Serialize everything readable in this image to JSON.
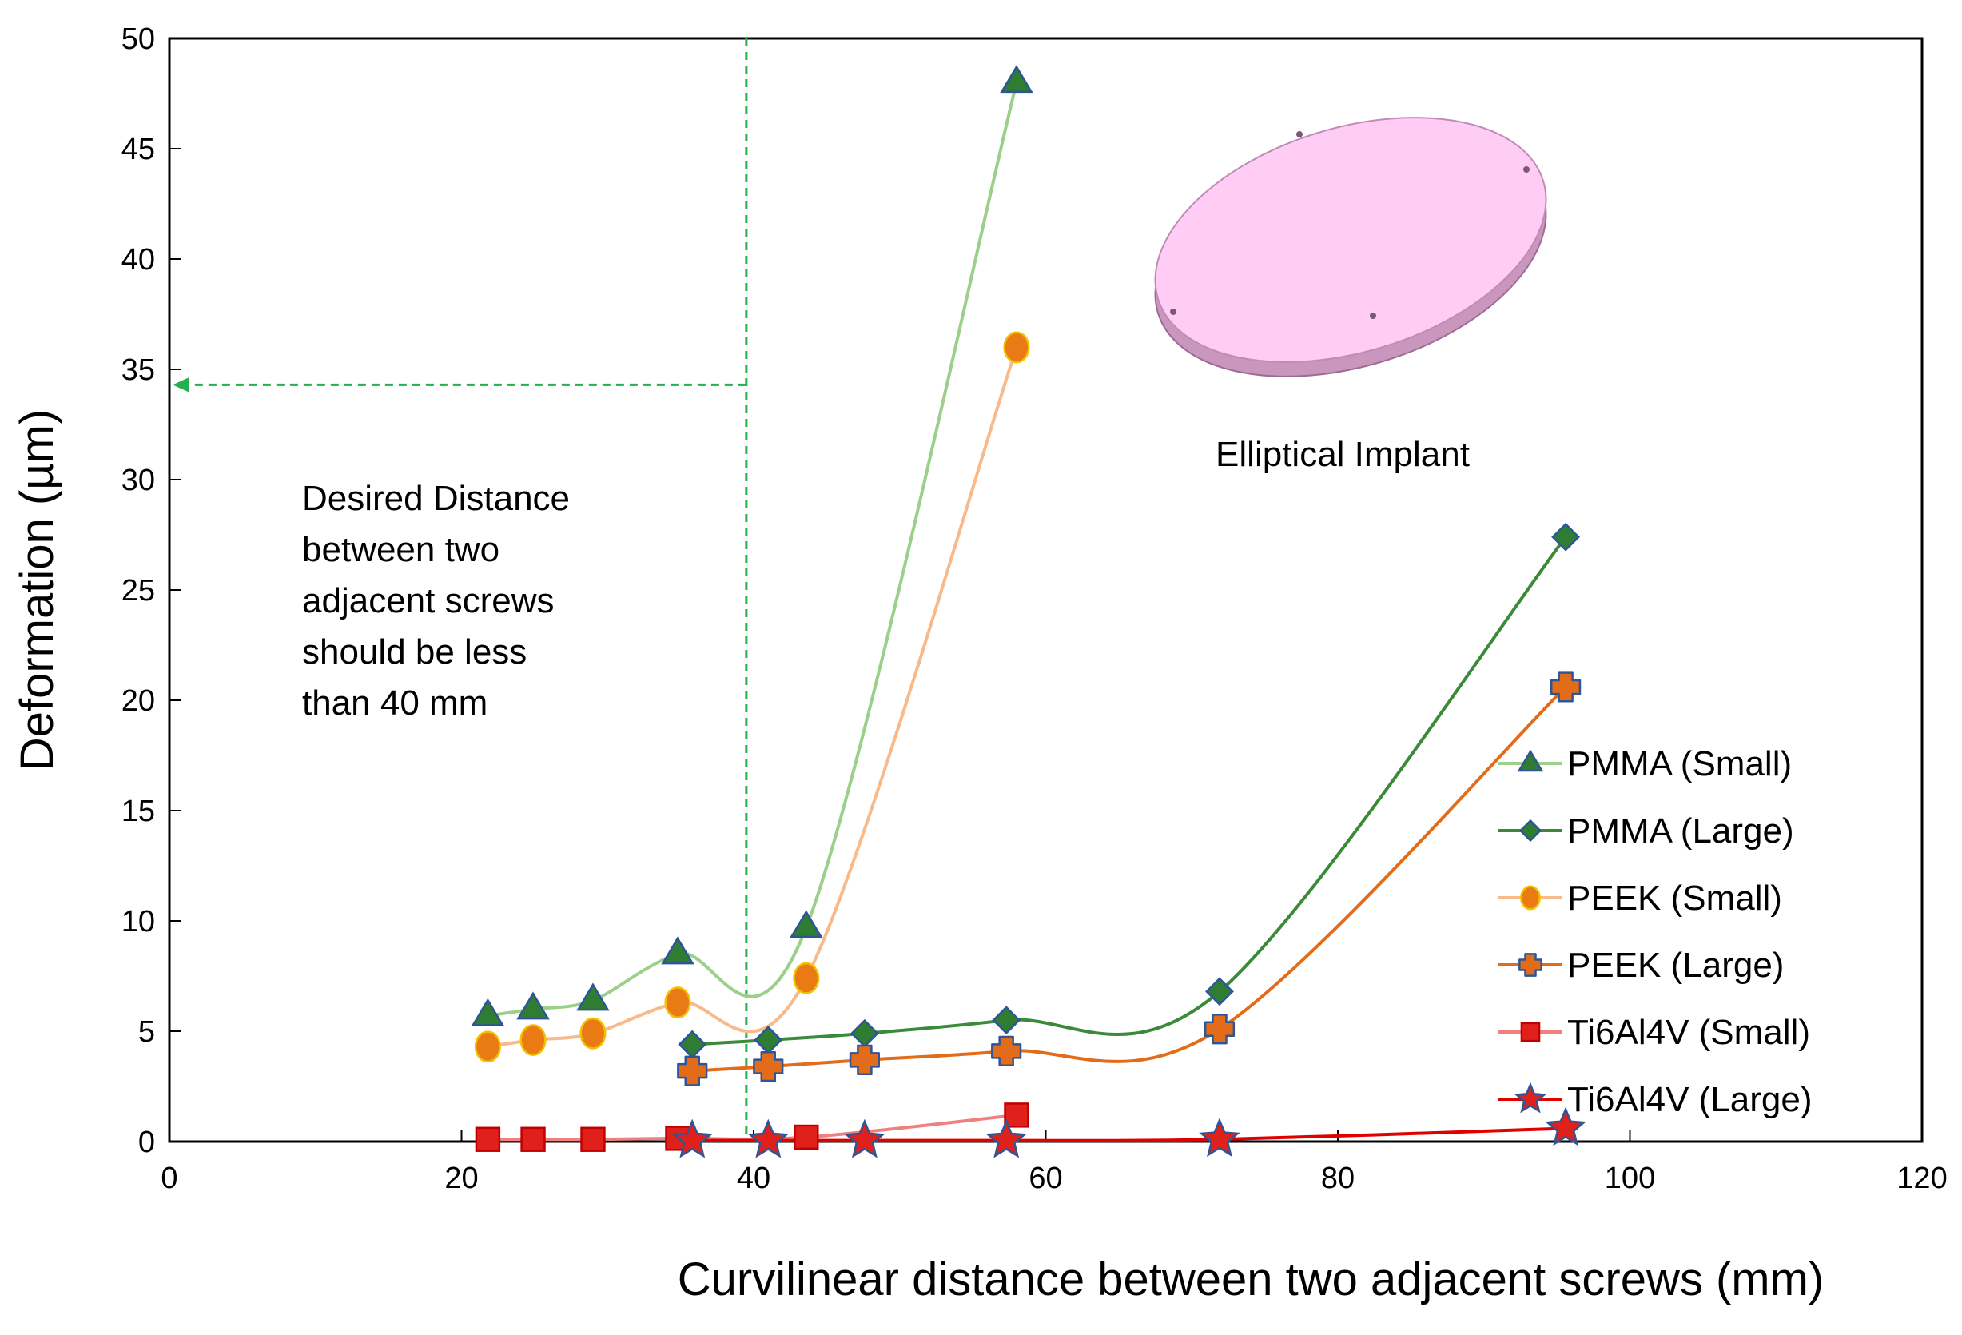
{
  "chart_data": {
    "type": "scatter",
    "title": "",
    "xlabel": "Curvilinear distance between two adjacent screws (mm)",
    "ylabel": "Deformation (µm)",
    "xlim": [
      0,
      120
    ],
    "ylim": [
      0,
      50
    ],
    "xticks": [
      "0",
      "20",
      "40",
      "60",
      "80",
      "100",
      "120"
    ],
    "yticks": [
      "0",
      "5",
      "10",
      "15",
      "20",
      "25",
      "30",
      "35",
      "40",
      "45",
      "50"
    ],
    "grid": false,
    "legend_position": "right",
    "series": [
      {
        "name": "PMMA (Small)",
        "color": "#9BCF8A",
        "marker": "triangle",
        "marker_fill": "#2E7D32",
        "marker_stroke": "#2F5597",
        "x": [
          21.8,
          24.9,
          29.0,
          34.8,
          43.6,
          58.0
        ],
        "y": [
          5.7,
          6.0,
          6.4,
          8.5,
          9.7,
          48.0
        ]
      },
      {
        "name": "PMMA (Large)",
        "color": "#3A8A3A",
        "marker": "diamond",
        "marker_fill": "#2E7D32",
        "marker_stroke": "#2F5597",
        "x": [
          35.8,
          41.0,
          47.6,
          57.3,
          71.9,
          95.6
        ],
        "y": [
          4.4,
          4.6,
          4.9,
          5.5,
          6.8,
          27.4
        ]
      },
      {
        "name": "PEEK (Small)",
        "color": "#F8BA8A",
        "marker": "circle",
        "marker_fill": "#E97A14",
        "marker_stroke": "#F2C200",
        "x": [
          21.8,
          24.9,
          29.0,
          34.8,
          43.6,
          58.0
        ],
        "y": [
          4.3,
          4.6,
          4.9,
          6.3,
          7.4,
          36.0
        ]
      },
      {
        "name": "PEEK (Large)",
        "color": "#E36C1A",
        "marker": "plus",
        "marker_fill": "#E36C1A",
        "marker_stroke": "#2F5597",
        "x": [
          35.8,
          41.0,
          47.6,
          57.3,
          71.9,
          95.6
        ],
        "y": [
          3.2,
          3.4,
          3.7,
          4.1,
          5.1,
          20.6
        ]
      },
      {
        "name": "Ti6Al4V (Small)",
        "color": "#F08080",
        "marker": "square",
        "marker_fill": "#E0201B",
        "marker_stroke": "#C00000",
        "x": [
          21.8,
          24.9,
          29.0,
          34.8,
          43.6,
          58.0
        ],
        "y": [
          0.1,
          0.1,
          0.1,
          0.15,
          0.2,
          1.2
        ]
      },
      {
        "name": "Ti6Al4V (Large)",
        "color": "#E00000",
        "marker": "star",
        "marker_fill": "#E0201B",
        "marker_stroke": "#2F5597",
        "x": [
          35.8,
          41.0,
          47.6,
          57.3,
          71.9,
          95.6
        ],
        "y": [
          0.05,
          0.05,
          0.05,
          0.05,
          0.1,
          0.6
        ]
      }
    ],
    "threshold_line": {
      "x": 39.5,
      "y": 34.3,
      "color": "#22B14C"
    },
    "annotations": {
      "desired_distance": [
        "Desired Distance",
        "between two",
        "adjacent screws",
        "should be less",
        "than 40 mm"
      ],
      "implant_label": "Elliptical  Implant"
    },
    "implant_color": "#FFCCF5"
  }
}
